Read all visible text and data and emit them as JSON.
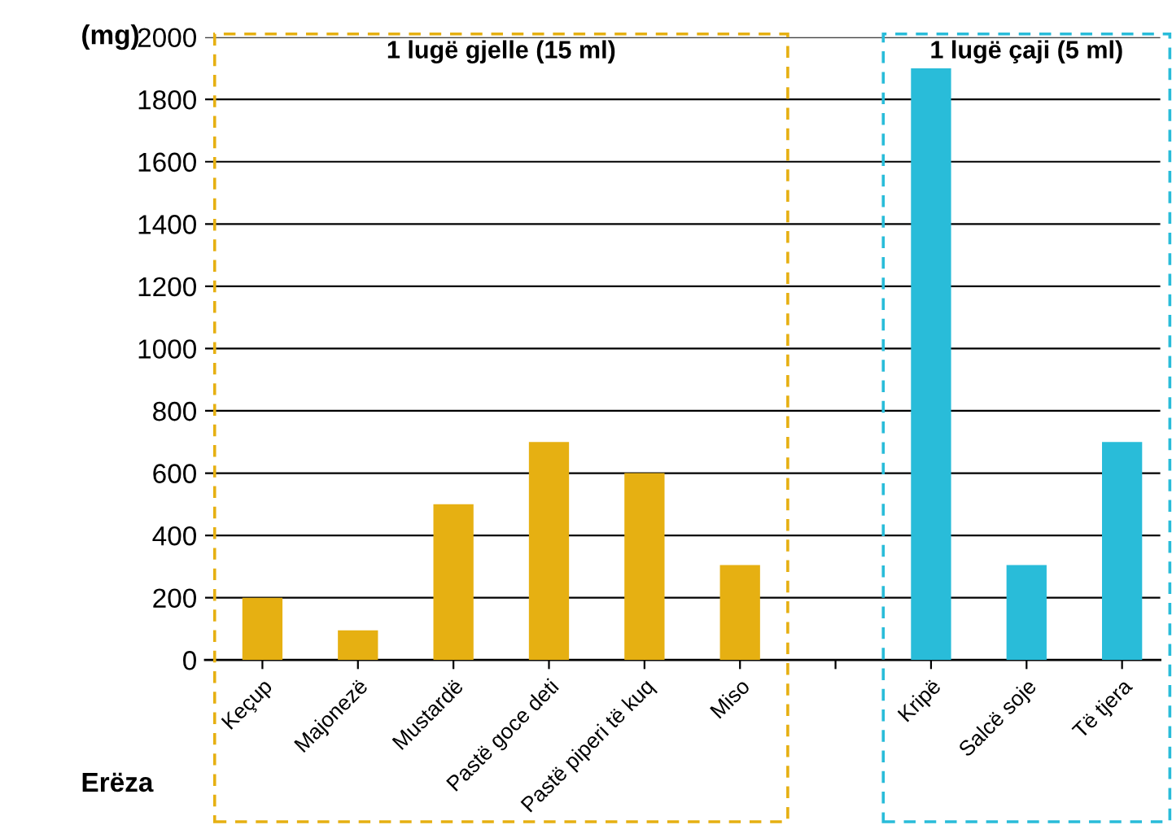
{
  "chart_data": {
    "type": "bar",
    "categories": [
      "Keçup",
      "Majonezë",
      "Mustardë",
      "Pastë goce deti",
      "Pastë piperi të kuq",
      "Miso",
      null,
      "Kripë",
      "Salcë soje",
      "Të tjera"
    ],
    "values": [
      200,
      95,
      500,
      700,
      600,
      305,
      null,
      1900,
      305,
      700
    ],
    "colors": [
      "#e6b012",
      "#e6b012",
      "#e6b012",
      "#e6b012",
      "#e6b012",
      "#e6b012",
      "#e6b012",
      "#29bcd9",
      "#29bcd9",
      "#29bcd9"
    ],
    "ylabel": "(mg)",
    "xlabel": "Erëza",
    "ylim": [
      0,
      2000
    ],
    "yticks": [
      0,
      200,
      400,
      600,
      800,
      1000,
      1200,
      1400,
      1600,
      1800,
      2000
    ],
    "grid": "y",
    "annotations": [
      "1 lugë gjelle (15 ml)",
      "1 lugë çaji (5 ml)"
    ]
  }
}
